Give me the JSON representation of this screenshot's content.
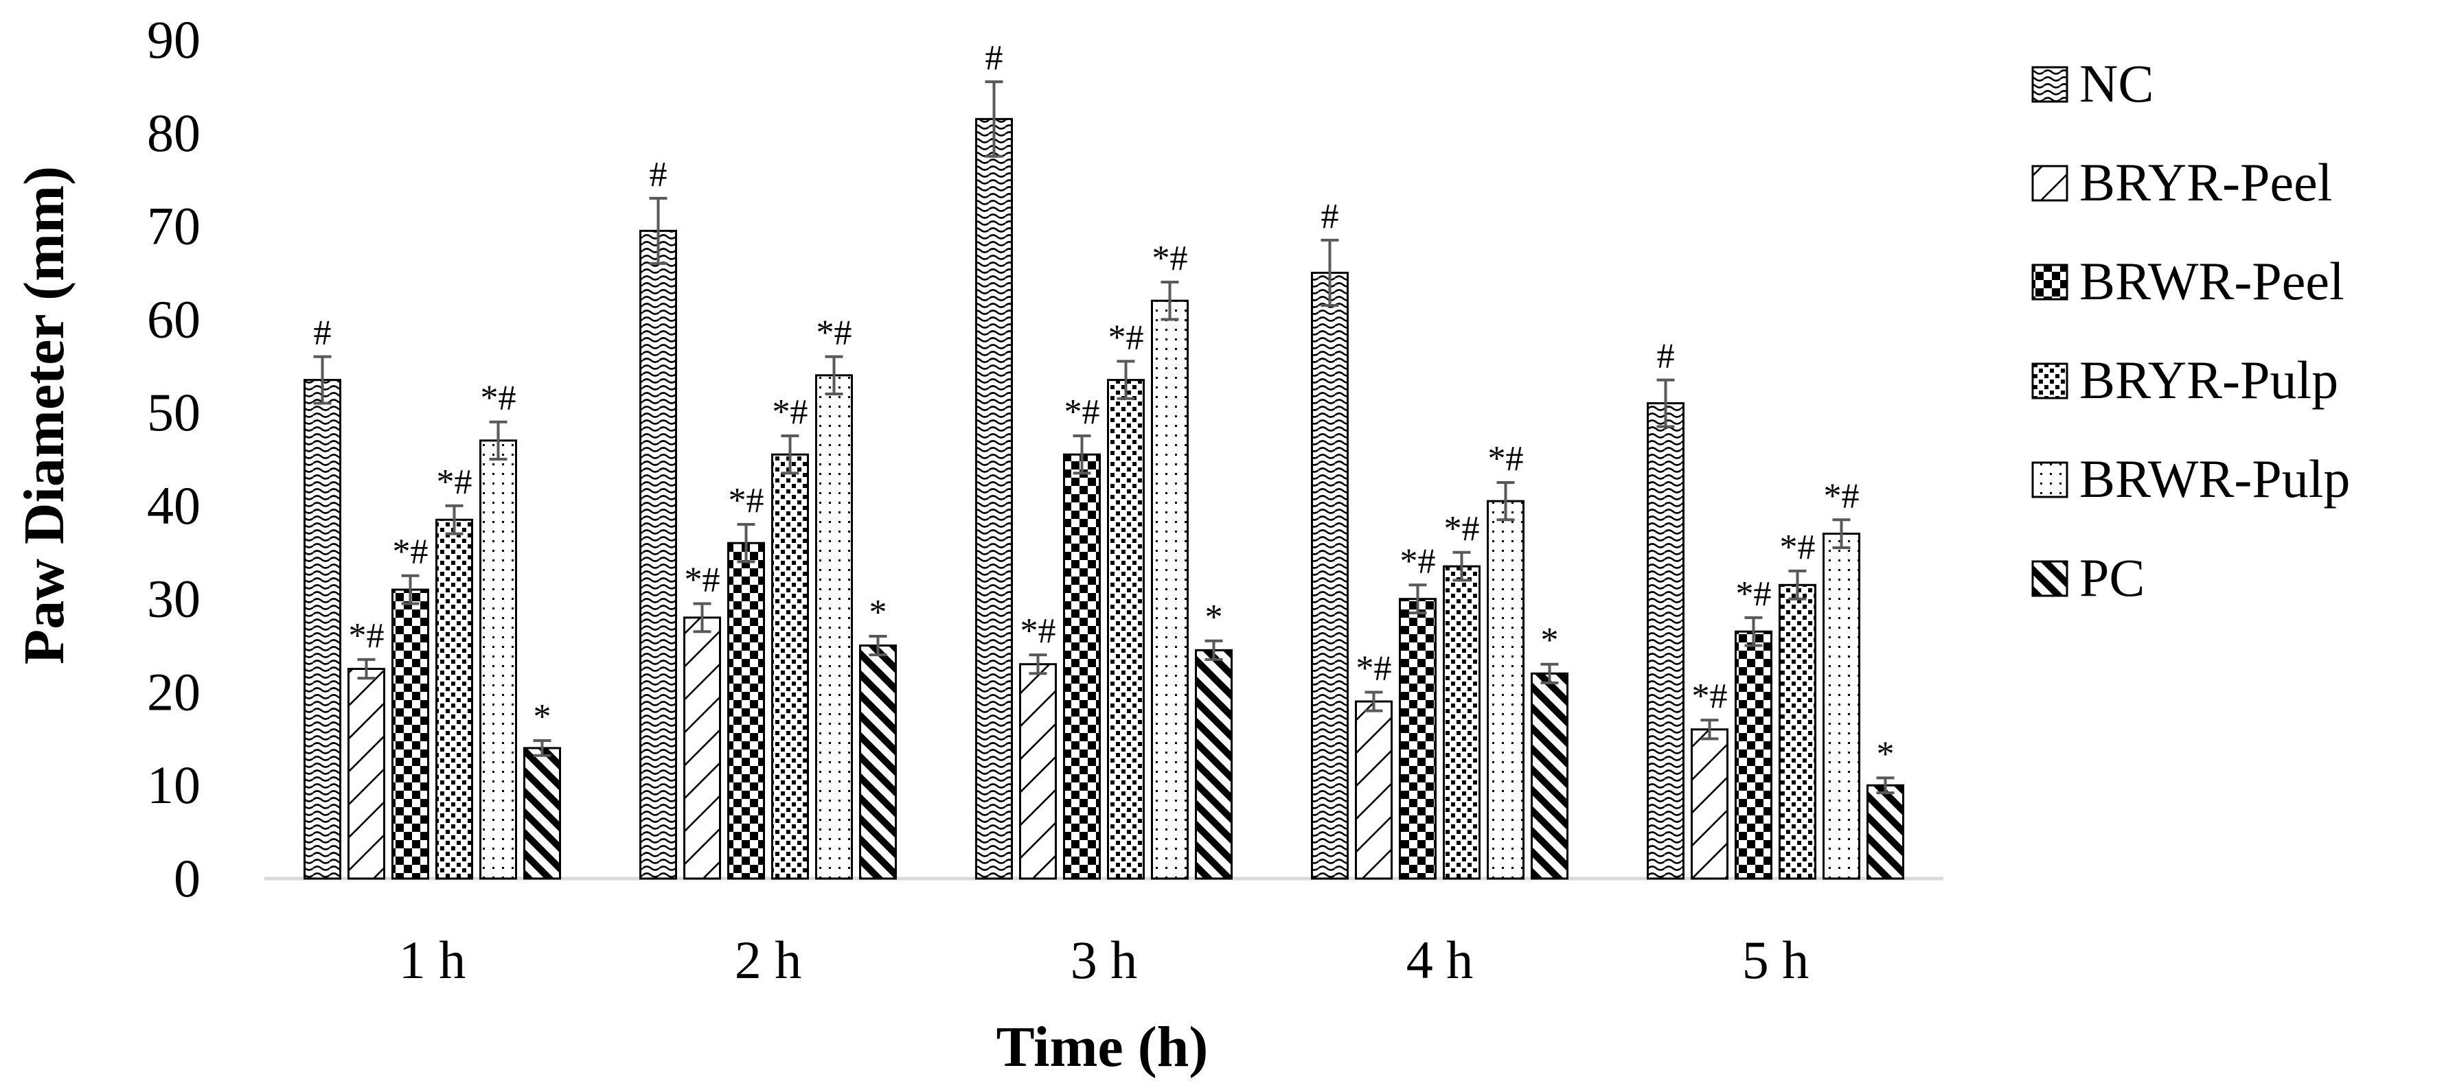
{
  "chart_data": {
    "type": "bar",
    "title": "",
    "xlabel": "Time (h)",
    "ylabel": "Paw Diameter (mm)",
    "ylim": [
      0,
      90
    ],
    "yticks": [
      0,
      10,
      20,
      30,
      40,
      50,
      60,
      70,
      80,
      90
    ],
    "grid": false,
    "legend_position": "right",
    "categories": [
      "1 h",
      "2 h",
      "3 h",
      "4 h",
      "5 h"
    ],
    "series": [
      {
        "name": "NC",
        "pattern": "waves",
        "values": [
          53.5,
          69.5,
          81.5,
          65.0,
          51.0
        ],
        "errors": [
          2.5,
          3.5,
          4.0,
          3.5,
          2.5
        ],
        "annotations": [
          "#",
          "#",
          "#",
          "#",
          "#"
        ]
      },
      {
        "name": "BRYR-Peel",
        "pattern": "diag-light",
        "values": [
          22.5,
          28.0,
          23.0,
          19.0,
          16.0
        ],
        "errors": [
          1.0,
          1.5,
          1.0,
          1.0,
          1.0
        ],
        "annotations": [
          "*#",
          "*#",
          "*#",
          "*#",
          "*#"
        ]
      },
      {
        "name": "BRWR-Peel",
        "pattern": "checker",
        "values": [
          31.0,
          36.0,
          45.5,
          30.0,
          26.5
        ],
        "errors": [
          1.5,
          2.0,
          2.0,
          1.5,
          1.5
        ],
        "annotations": [
          "*#",
          "*#",
          "*#",
          "*#",
          "*#"
        ]
      },
      {
        "name": "BRYR-Pulp",
        "pattern": "dots-dense",
        "values": [
          38.5,
          45.5,
          53.5,
          33.5,
          31.5
        ],
        "errors": [
          1.5,
          2.0,
          2.0,
          1.5,
          1.5
        ],
        "annotations": [
          "*#",
          "*#",
          "*#",
          "*#",
          "*#"
        ]
      },
      {
        "name": "BRWR-Pulp",
        "pattern": "dots-light",
        "values": [
          47.0,
          54.0,
          62.0,
          40.5,
          37.0
        ],
        "errors": [
          2.0,
          2.0,
          2.0,
          2.0,
          1.5
        ],
        "annotations": [
          "*#",
          "*#",
          "*#",
          "*#",
          "*#"
        ]
      },
      {
        "name": "PC",
        "pattern": "diag-bold",
        "values": [
          14.0,
          25.0,
          24.5,
          22.0,
          10.0
        ],
        "errors": [
          0.8,
          1.0,
          1.0,
          1.0,
          0.8
        ],
        "annotations": [
          "*",
          "*",
          "*",
          "*",
          "*"
        ]
      }
    ]
  },
  "colors": {
    "ink": "#000000",
    "errorbar": "#595959",
    "axis": "#d9d9d9",
    "background": "#ffffff"
  }
}
